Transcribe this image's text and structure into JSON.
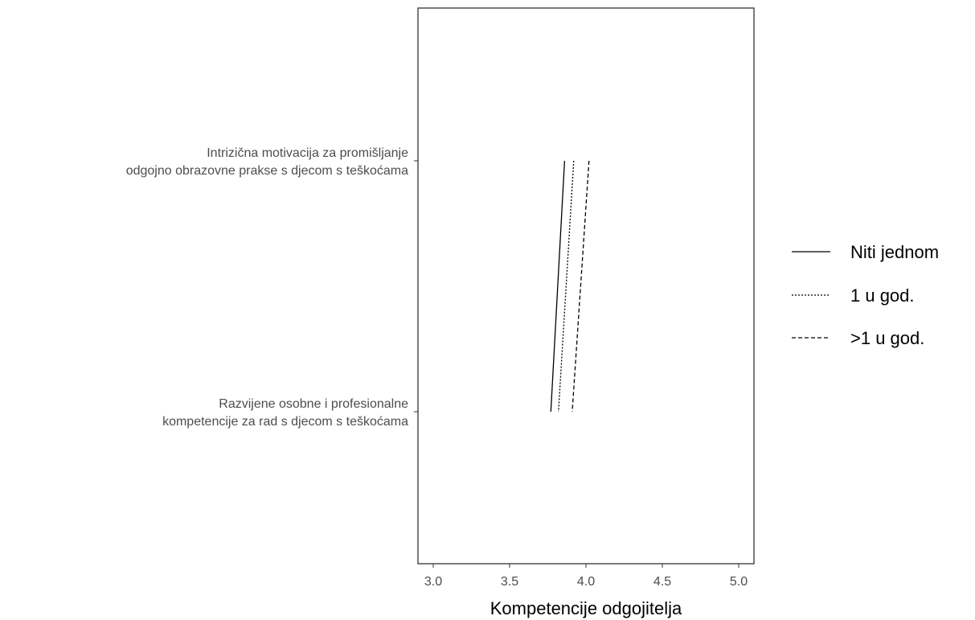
{
  "chart_data": {
    "type": "line",
    "xlabel": "Kompetencije odgojitelja",
    "ylabel": "",
    "xlim": [
      2.9,
      5.1
    ],
    "x_ticks": [
      3.0,
      3.5,
      4.0,
      4.5,
      5.0
    ],
    "x_tick_labels": [
      "3.0",
      "3.5",
      "4.0",
      "4.5",
      "5.0"
    ],
    "categories": [
      {
        "lines": [
          "Intrizična motivacija za promišljanje",
          "odgojno obrazovne prakse s djecom s teškoćama"
        ]
      },
      {
        "lines": [
          "Razvijene osobne i profesionalne",
          "kompetencije za rad s djecom s teškoćama"
        ]
      }
    ],
    "grid": false,
    "legend_position": "right",
    "series": [
      {
        "name": "Niti jednom",
        "values": [
          3.86,
          3.77
        ],
        "line_style": "solid",
        "color": "#000000"
      },
      {
        "name": "1 u god.",
        "values": [
          3.92,
          3.82
        ],
        "line_style": "dotted",
        "color": "#000000"
      },
      {
        "name": ">1 u god.",
        "values": [
          4.02,
          3.91
        ],
        "line_style": "dashed",
        "color": "#000000"
      }
    ]
  }
}
